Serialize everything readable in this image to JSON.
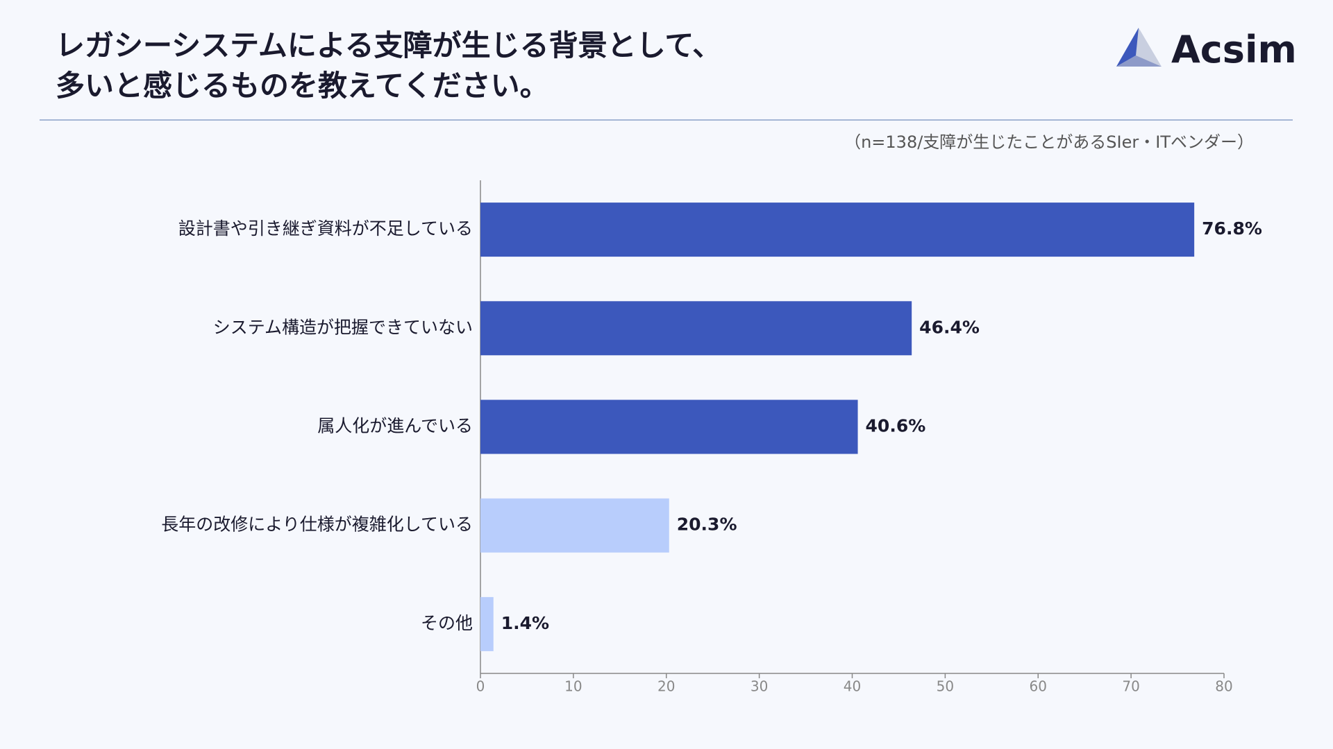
{
  "logo": "Acsim",
  "chart_data": {
    "type": "barh",
    "title": [
      "レガシーシステムによる支障が生じる背景として、",
      "多いと感じるものを教えてください。"
    ],
    "note": "（n=138/支障が生じたことがあるSIer・ITベンダー）",
    "categories": [
      "設計書や引き継ぎ資料が不足している",
      "システム構造が把握できていない",
      "属人化が進んでいる",
      "長年の改修により仕様が複雑化している",
      "その他"
    ],
    "values": [
      76.8,
      46.4,
      40.6,
      20.3,
      1.4
    ],
    "value_labels": [
      "76.8%",
      "46.4%",
      "40.6%",
      "20.3%",
      "1.4%"
    ],
    "colors": [
      "#3c58bc",
      "#3c58bc",
      "#3c58bc",
      "#b8cdfc",
      "#b8cdfc"
    ],
    "xlim": [
      0,
      80
    ],
    "xticks": [
      0,
      10,
      20,
      30,
      40,
      50,
      60,
      70,
      80
    ]
  }
}
